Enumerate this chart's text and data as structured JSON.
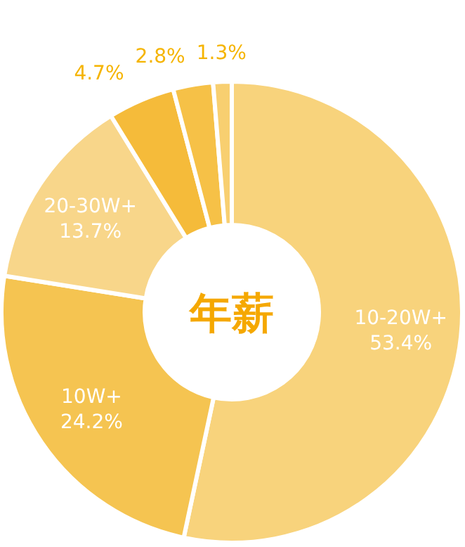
{
  "chart_data": {
    "type": "donut",
    "title": "年薪",
    "categories": [
      "10-20W+",
      "10W+",
      "20-30W+",
      null,
      null,
      null
    ],
    "values": [
      53.4,
      24.2,
      13.7,
      4.7,
      2.8,
      1.3
    ],
    "colors": [
      "#f8d37c",
      "#f5c451",
      "#f8d68a",
      "#f5bb3a",
      "#f6c147",
      "#f8cf70"
    ],
    "value_labels": [
      "53.4%",
      "24.2%",
      "13.7%",
      "4.7%",
      "2.8%",
      "1.3%"
    ]
  }
}
